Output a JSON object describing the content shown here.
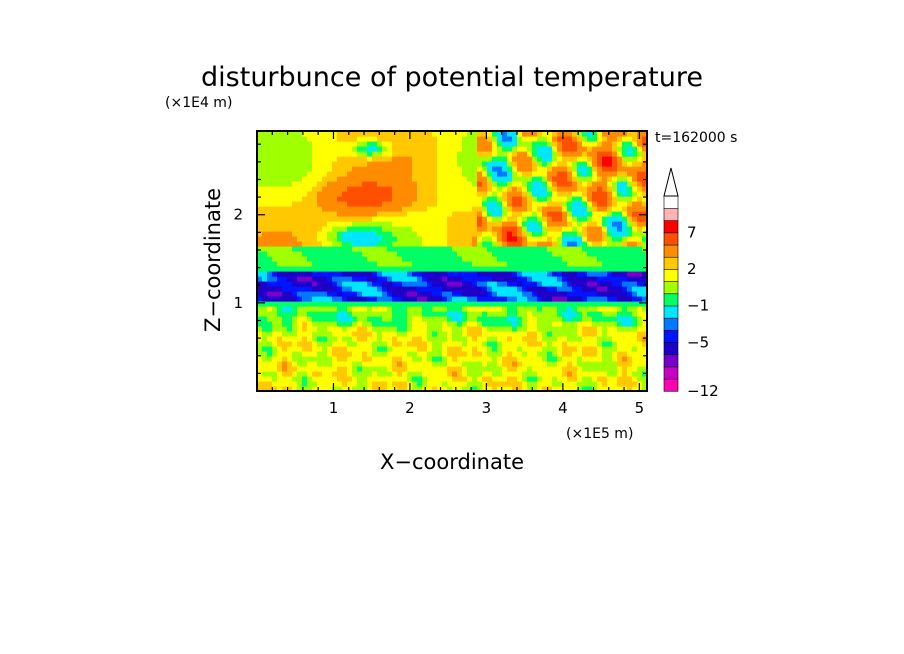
{
  "chart_data": {
    "type": "heatmap",
    "title": "disturbunce of potential temperature",
    "xlabel": "X−coordinate",
    "ylabel": "Z−coordinate",
    "x_unit": "(×1E5 m)",
    "y_unit": "(×1E4 m)",
    "time_label": "t=162000 s",
    "xlim": [
      0,
      5.1
    ],
    "ylim": [
      0,
      2.95
    ],
    "x_ticks": [
      1,
      2,
      3,
      4,
      5
    ],
    "y_ticks": [
      1,
      2
    ],
    "colorbar": {
      "levels": [
        -12,
        -11,
        -9,
        -7,
        -5,
        -4,
        -3,
        -1,
        0,
        1,
        2,
        3,
        5,
        7,
        8,
        9
      ],
      "labeled_levels": [
        "−12",
        "−5",
        "−1",
        "2",
        "7"
      ],
      "colors": [
        "#ff00b4",
        "#c800c8",
        "#7800c8",
        "#1e00c8",
        "#0014ff",
        "#0078ff",
        "#00e6ff",
        "#00ff64",
        "#a0ff00",
        "#ffff00",
        "#ffc800",
        "#ff8c00",
        "#ff5000",
        "#ff0000",
        "#ffb4b4",
        "#ffffff"
      ],
      "extend": "max"
    },
    "field_description_bands": [
      {
        "z_range": [
          0.0,
          0.25
        ],
        "dominant": "green/yellow mix"
      },
      {
        "z_range": [
          0.25,
          0.75
        ],
        "dominant": "yellow with green"
      },
      {
        "z_range": [
          0.75,
          0.95
        ],
        "dominant": "cyan"
      },
      {
        "z_range": [
          0.95,
          1.4
        ],
        "dominant": "blue/cyan stripes"
      },
      {
        "z_range": [
          1.4,
          1.6
        ],
        "dominant": "cyan/green"
      },
      {
        "z_range": [
          1.6,
          2.95
        ],
        "dominant": "yellow/orange with wave cells"
      }
    ]
  }
}
